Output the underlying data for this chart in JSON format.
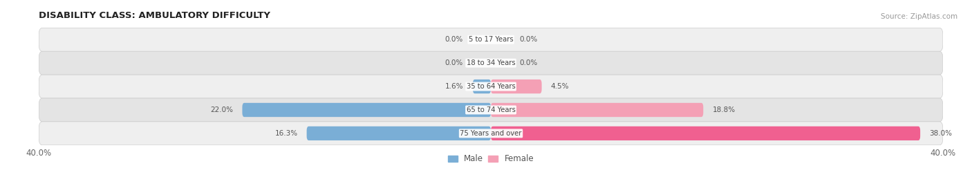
{
  "title": "DISABILITY CLASS: AMBULATORY DIFFICULTY",
  "source": "Source: ZipAtlas.com",
  "categories": [
    "5 to 17 Years",
    "18 to 34 Years",
    "35 to 64 Years",
    "65 to 74 Years",
    "75 Years and over"
  ],
  "male_values": [
    0.0,
    0.0,
    1.6,
    22.0,
    16.3
  ],
  "female_values": [
    0.0,
    0.0,
    4.5,
    18.8,
    38.0
  ],
  "male_color": "#7aaed6",
  "female_color": "#f4a0b5",
  "female_color_bright": "#f06090",
  "row_bg_color_odd": "#efefef",
  "row_bg_color_even": "#e4e4e4",
  "x_max": 40.0,
  "label_color": "#555555",
  "title_color": "#222222",
  "source_color": "#999999",
  "axis_label_color": "#666666",
  "center_label_color": "#444444",
  "legend_male": "Male",
  "legend_female": "Female"
}
